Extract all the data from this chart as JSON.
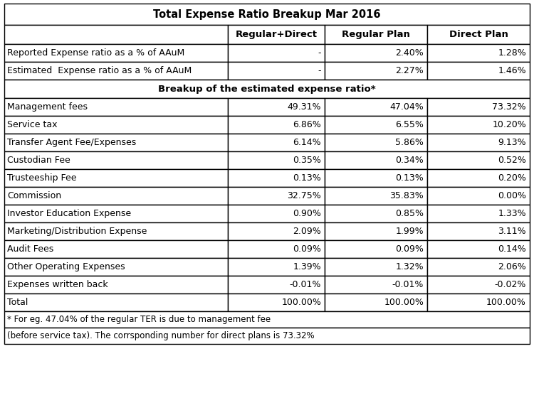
{
  "title": "Total Expense Ratio Breakup Mar 2016",
  "col_headers": [
    "",
    "Regular+Direct",
    "Regular Plan",
    "Direct Plan"
  ],
  "section1_rows": [
    [
      "Reported Expense ratio as a % of AAuM",
      "-",
      "2.40%",
      "1.28%"
    ],
    [
      "Estimated  Expense ratio as a % of AAuM",
      "-",
      "2.27%",
      "1.46%"
    ]
  ],
  "section2_title": "Breakup of the estimated expense ratio*",
  "section2_rows": [
    [
      "Management fees",
      "49.31%",
      "47.04%",
      "73.32%"
    ],
    [
      "Service tax",
      "6.86%",
      "6.55%",
      "10.20%"
    ],
    [
      "Transfer Agent Fee/Expenses",
      "6.14%",
      "5.86%",
      "9.13%"
    ],
    [
      "Custodian Fee",
      "0.35%",
      "0.34%",
      "0.52%"
    ],
    [
      "Trusteeship Fee",
      "0.13%",
      "0.13%",
      "0.20%"
    ],
    [
      "Commission",
      "32.75%",
      "35.83%",
      "0.00%"
    ],
    [
      "Investor Education Expense",
      "0.90%",
      "0.85%",
      "1.33%"
    ],
    [
      "Marketing/Distribution Expense",
      "2.09%",
      "1.99%",
      "3.11%"
    ],
    [
      "Audit Fees",
      "0.09%",
      "0.09%",
      "0.14%"
    ],
    [
      "Other Operating Expenses",
      "1.39%",
      "1.32%",
      "2.06%"
    ],
    [
      "Expenses written back",
      "-0.01%",
      "-0.01%",
      "-0.02%"
    ],
    [
      "Total",
      "100.00%",
      "100.00%",
      "100.00%"
    ]
  ],
  "footnote1": "* For eg. 47.04% of the regular TER is due to management fee",
  "footnote2": "(before service tax). The corrsponding number for direct plans is 73.32%",
  "bg_color": "#ffffff",
  "border_color": "#000000",
  "title_fontsize": 10.5,
  "header_fontsize": 9.5,
  "cell_fontsize": 9.0,
  "footnote_fontsize": 8.5,
  "fig_width": 7.5,
  "fig_height": 5.53,
  "dpi": 100
}
